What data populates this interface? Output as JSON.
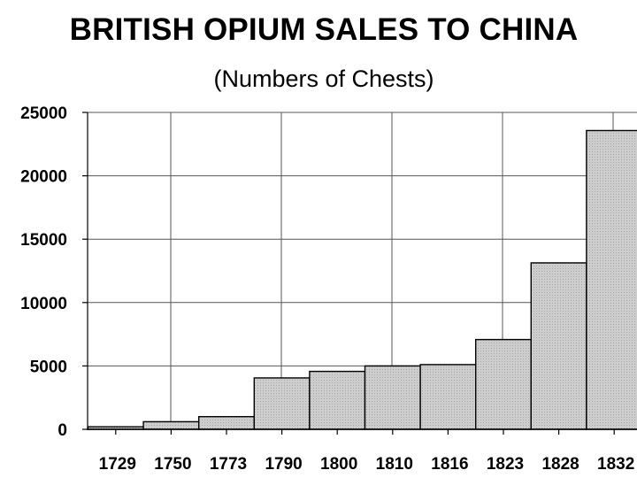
{
  "chart_data": {
    "type": "bar",
    "title": "BRITISH OPIUM SALES TO CHINA",
    "subtitle": "(Numbers of Chests)",
    "xlabel": "",
    "ylabel": "",
    "categories": [
      "1729",
      "1750",
      "1773",
      "1790",
      "1800",
      "1810",
      "1816",
      "1823",
      "1828",
      "1832"
    ],
    "values": [
      200,
      600,
      1000,
      4054,
      4570,
      5000,
      5106,
      7082,
      13131,
      23570
    ],
    "ylim": [
      0,
      25000
    ],
    "yticks": [
      "0",
      "5000",
      "10000",
      "15000",
      "20000",
      "25000"
    ],
    "grid": true,
    "bar_color": "#c4c4c4"
  }
}
